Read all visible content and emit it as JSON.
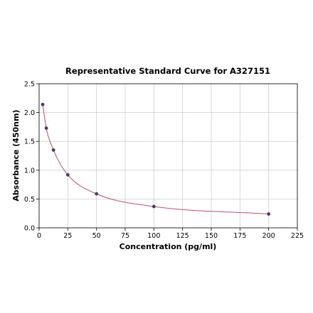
{
  "chart_data": {
    "type": "scatter",
    "title": "Representative Standard Curve for A327151",
    "xlabel": "Concentration (pg/ml)",
    "ylabel": "Absorbance (450nm)",
    "xlim": [
      0,
      225
    ],
    "ylim": [
      0,
      2.5
    ],
    "xticks": [
      0,
      25,
      50,
      75,
      100,
      125,
      150,
      175,
      200,
      225
    ],
    "yticks": [
      0.0,
      0.5,
      1.0,
      1.5,
      2.0,
      2.5
    ],
    "xtick_labels": [
      "0",
      "25",
      "50",
      "75",
      "100",
      "125",
      "150",
      "175",
      "200",
      "225"
    ],
    "ytick_labels": [
      "0.0",
      "0.5",
      "1.0",
      "1.5",
      "2.0",
      "2.5"
    ],
    "grid": true,
    "series": [
      {
        "points": [
          {
            "x": 3.125,
            "y": 2.14
          },
          {
            "x": 6.25,
            "y": 1.73
          },
          {
            "x": 12.5,
            "y": 1.35
          },
          {
            "x": 25,
            "y": 0.92
          },
          {
            "x": 50,
            "y": 0.59
          },
          {
            "x": 100,
            "y": 0.37
          },
          {
            "x": 200,
            "y": 0.24
          }
        ],
        "marker_color": "#4b3a6e",
        "curve_color": "#c0506a",
        "fit": "smooth"
      }
    ]
  }
}
